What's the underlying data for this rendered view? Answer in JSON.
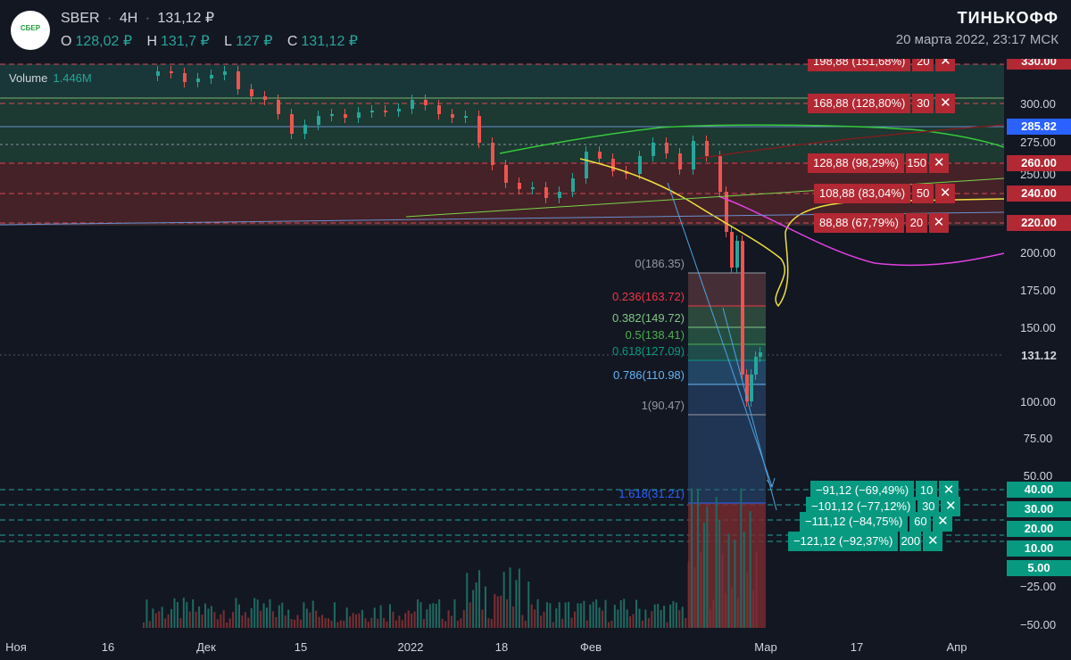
{
  "header": {
    "logo_text": "СБЕР",
    "symbol": "SBER",
    "timeframe": "4H",
    "last_price": "131,12 ₽",
    "ohlc": [
      {
        "key": "O",
        "value": "128,02 ₽"
      },
      {
        "key": "H",
        "value": "131,7 ₽"
      },
      {
        "key": "L",
        "value": "127 ₽"
      },
      {
        "key": "C",
        "value": "131,12 ₽"
      }
    ],
    "brand": "ТИНЬКОФФ",
    "datetime": "20 марта 2022, 23:17 МСК"
  },
  "volume": {
    "label": "Volume",
    "value": "1.446M"
  },
  "colors": {
    "background": "#131722",
    "up": "#26a69a",
    "down": "#ef5350",
    "order_red": "#b22833",
    "order_green": "#089981",
    "price_blue": "#2962ff"
  },
  "price_axis": {
    "labels": [
      "300.00",
      "275.00",
      "250.00",
      "200.00",
      "175.00",
      "150.00",
      "100.00",
      "75.00",
      "50.00",
      "−25.00",
      "−50.00"
    ],
    "tags": [
      {
        "text": "330.00",
        "type": "red"
      },
      {
        "text": "285.82",
        "type": "blue"
      },
      {
        "text": "260.00",
        "type": "red"
      },
      {
        "text": "240.00",
        "type": "red"
      },
      {
        "text": "220.00",
        "type": "red"
      },
      {
        "text": "131.12",
        "type": "dark"
      },
      {
        "text": "40.00",
        "type": "green"
      },
      {
        "text": "30.00",
        "type": "green"
      },
      {
        "text": "20.00",
        "type": "green"
      },
      {
        "text": "10.00",
        "type": "green"
      },
      {
        "text": "5.00",
        "type": "green"
      }
    ]
  },
  "time_axis": [
    "Ноя",
    "16",
    "Дек",
    "15",
    "2022",
    "18",
    "Фев",
    "Мар",
    "17",
    "Апр"
  ],
  "orders": [
    {
      "price": "198,88 (151,68%)",
      "qty": "20",
      "side": "sell"
    },
    {
      "price": "168,88 (128,80%)",
      "qty": "30",
      "side": "sell"
    },
    {
      "price": "128,88 (98,29%)",
      "qty": "150",
      "side": "sell"
    },
    {
      "price": "108,88 (83,04%)",
      "qty": "50",
      "side": "sell"
    },
    {
      "price": "88,88 (67,79%)",
      "qty": "20",
      "side": "sell"
    },
    {
      "price": "−91,12 (−69,49%)",
      "qty": "10",
      "side": "buy"
    },
    {
      "price": "−101,12 (−77,12%)",
      "qty": "30",
      "side": "buy"
    },
    {
      "price": "−111,12 (−84,75%)",
      "qty": "60",
      "side": "buy"
    },
    {
      "price": "−121,12 (−92,37%)",
      "qty": "200",
      "side": "buy"
    }
  ],
  "fibonacci": [
    {
      "label": "0(186.35)",
      "color": "#9598a1"
    },
    {
      "label": "0.236(163.72)",
      "color": "#f23645"
    },
    {
      "label": "0.382(149.72)",
      "color": "#81c784"
    },
    {
      "label": "0.5(138.41)",
      "color": "#4caf50"
    },
    {
      "label": "0.618(127.09)",
      "color": "#089981"
    },
    {
      "label": "0.786(110.98)",
      "color": "#64b5f6"
    },
    {
      "label": "1(90.47)",
      "color": "#9598a1"
    },
    {
      "label": "1.618(31.21)",
      "color": "#2962ff"
    }
  ]
}
